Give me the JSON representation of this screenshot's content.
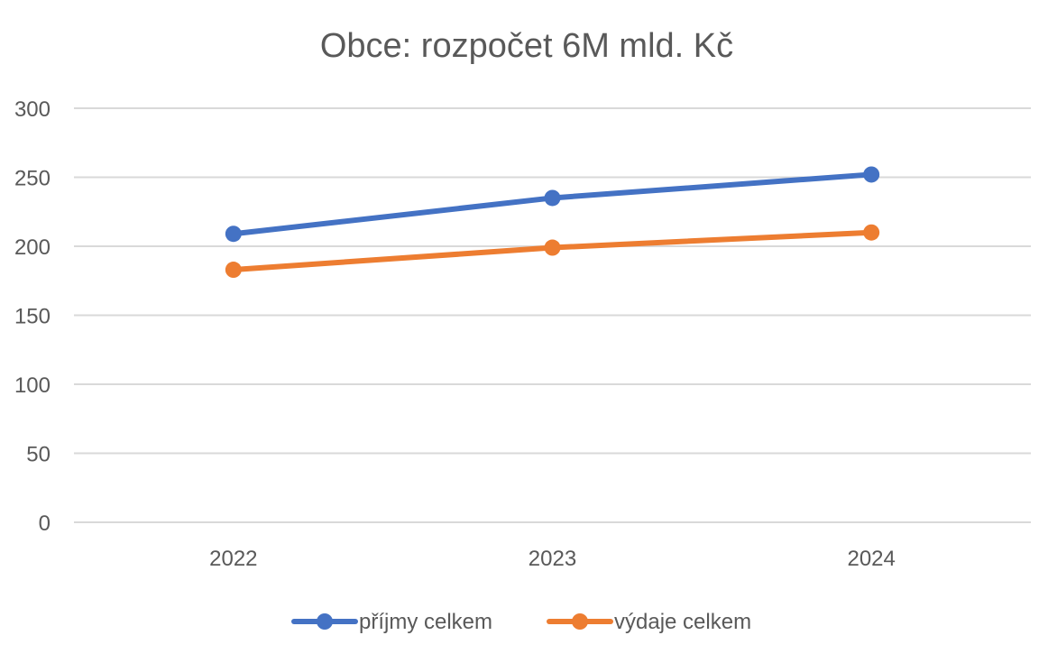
{
  "chart_data": {
    "type": "line",
    "title": "Obce: rozpočet 6M mld. Kč",
    "xlabel": "",
    "ylabel": "",
    "categories": [
      "2022",
      "2023",
      "2024"
    ],
    "ylim": [
      0,
      300
    ],
    "yticks": [
      "0",
      "50",
      "100",
      "150",
      "200",
      "250",
      "300"
    ],
    "grid": true,
    "legend_position": "bottom",
    "series": [
      {
        "name": "příjmy celkem",
        "color": "#4472c4",
        "values": [
          209,
          235,
          252
        ]
      },
      {
        "name": "výdaje celkem",
        "color": "#ed7d31",
        "values": [
          183,
          199,
          210
        ]
      }
    ]
  }
}
